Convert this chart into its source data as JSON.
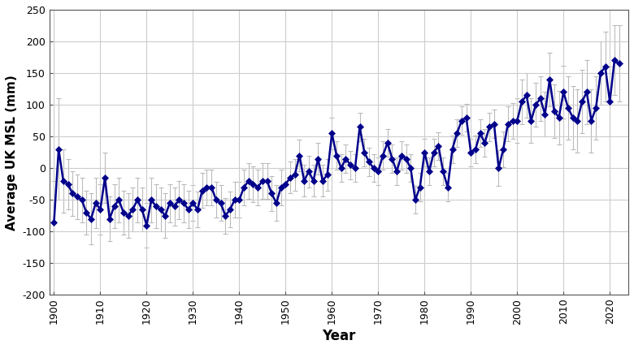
{
  "years": [
    1900,
    1901,
    1902,
    1903,
    1904,
    1905,
    1906,
    1907,
    1908,
    1909,
    1910,
    1911,
    1912,
    1913,
    1914,
    1915,
    1916,
    1917,
    1918,
    1919,
    1920,
    1921,
    1922,
    1923,
    1924,
    1925,
    1926,
    1927,
    1928,
    1929,
    1930,
    1931,
    1932,
    1933,
    1934,
    1935,
    1936,
    1937,
    1938,
    1939,
    1940,
    1941,
    1942,
    1943,
    1944,
    1945,
    1946,
    1947,
    1948,
    1949,
    1950,
    1951,
    1952,
    1953,
    1954,
    1955,
    1956,
    1957,
    1958,
    1959,
    1960,
    1961,
    1962,
    1963,
    1964,
    1965,
    1966,
    1967,
    1968,
    1969,
    1970,
    1971,
    1972,
    1973,
    1974,
    1975,
    1976,
    1977,
    1978,
    1979,
    1980,
    1981,
    1982,
    1983,
    1984,
    1985,
    1986,
    1987,
    1988,
    1989,
    1990,
    1991,
    1992,
    1993,
    1994,
    1995,
    1996,
    1997,
    1998,
    1999,
    2000,
    2001,
    2002,
    2003,
    2004,
    2005,
    2006,
    2007,
    2008,
    2009,
    2010,
    2011,
    2012,
    2013,
    2014,
    2015,
    2016,
    2017,
    2018,
    2019,
    2020,
    2021,
    2022
  ],
  "values": [
    -85,
    30,
    -20,
    -25,
    -40,
    -45,
    -50,
    -70,
    -80,
    -55,
    -65,
    -15,
    -80,
    -60,
    -50,
    -70,
    -75,
    -65,
    -50,
    -65,
    -90,
    -50,
    -60,
    -65,
    -75,
    -55,
    -60,
    -50,
    -55,
    -65,
    -55,
    -65,
    -35,
    -30,
    -30,
    -50,
    -55,
    -75,
    -65,
    -50,
    -50,
    -30,
    -20,
    -25,
    -30,
    -20,
    -20,
    -40,
    -55,
    -30,
    -25,
    -15,
    -10,
    20,
    -20,
    -5,
    -20,
    15,
    -20,
    -10,
    55,
    20,
    0,
    15,
    5,
    0,
    65,
    25,
    10,
    0,
    -5,
    20,
    40,
    15,
    -5,
    20,
    15,
    0,
    -50,
    -30,
    25,
    -5,
    25,
    35,
    -5,
    -30,
    30,
    55,
    75,
    80,
    25,
    30,
    55,
    40,
    65,
    70,
    0,
    30,
    70,
    75,
    75,
    105,
    115,
    75,
    100,
    110,
    85,
    140,
    90,
    80,
    120,
    95,
    80,
    75,
    105,
    120,
    75,
    95,
    150,
    160,
    105,
    170,
    165
  ],
  "errors": [
    65,
    80,
    50,
    40,
    35,
    35,
    35,
    35,
    40,
    40,
    40,
    40,
    35,
    35,
    35,
    35,
    35,
    35,
    35,
    35,
    35,
    35,
    35,
    35,
    35,
    30,
    30,
    30,
    30,
    30,
    28,
    28,
    28,
    28,
    28,
    28,
    28,
    28,
    28,
    28,
    28,
    28,
    28,
    28,
    28,
    28,
    28,
    28,
    28,
    28,
    25,
    25,
    25,
    25,
    25,
    25,
    25,
    25,
    25,
    25,
    25,
    22,
    22,
    22,
    22,
    22,
    22,
    22,
    22,
    22,
    22,
    22,
    22,
    22,
    22,
    22,
    22,
    22,
    22,
    22,
    22,
    22,
    22,
    22,
    22,
    22,
    22,
    22,
    22,
    22,
    22,
    22,
    22,
    22,
    22,
    22,
    28,
    28,
    28,
    28,
    35,
    35,
    35,
    35,
    35,
    35,
    35,
    42,
    42,
    42,
    42,
    50,
    50,
    50,
    50,
    50,
    50,
    50,
    50,
    55,
    55,
    55,
    60
  ],
  "line_color": "#00008B",
  "marker_color": "#00008B",
  "error_color": "#BBBBBB",
  "bg_color": "#FFFFFF",
  "grid_color": "#CCCCCC",
  "xlabel": "Year",
  "ylabel": "Average UK MSL (mm)",
  "ylim": [
    -200,
    250
  ],
  "xlim": [
    1899,
    2024
  ],
  "yticks": [
    -200,
    -150,
    -100,
    -50,
    0,
    50,
    100,
    150,
    200,
    250
  ],
  "xticks": [
    1900,
    1910,
    1920,
    1930,
    1940,
    1950,
    1960,
    1970,
    1980,
    1990,
    2000,
    2010,
    2020
  ],
  "marker_size": 4,
  "line_width": 1.8,
  "error_capsize": 2,
  "error_linewidth": 0.8,
  "tick_fontsize": 9,
  "label_fontsize": 11,
  "xlabel_fontsize": 12
}
